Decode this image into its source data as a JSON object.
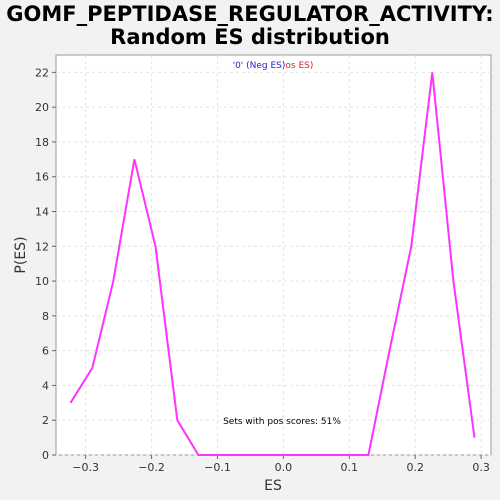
{
  "page": {
    "title_line1": "GOMF_PEPTIDASE_REGULATOR_ACTIVITY:",
    "title_line2": "Random ES distribution"
  },
  "chart_data": {
    "type": "line",
    "xlabel": "ES",
    "ylabel": "P(ES)",
    "xlim": [
      -0.345,
      0.315
    ],
    "ylim": [
      0,
      23
    ],
    "x_ticks": [
      -0.3,
      -0.2,
      -0.1,
      0.0,
      0.1,
      0.2,
      0.3
    ],
    "x_tick_labels": [
      "−0.3",
      "−0.2",
      "−0.1",
      "0.0",
      "0.1",
      "0.2",
      "0.3"
    ],
    "y_ticks": [
      0,
      2,
      4,
      6,
      8,
      10,
      12,
      14,
      16,
      18,
      20,
      22
    ],
    "grid": true,
    "legend": {
      "neg_text": "'0' (Neg ES)",
      "pos_text": "os ES)",
      "neg_color": "#2222cc",
      "pos_color": "#dd2222",
      "placement": "top-center"
    },
    "annotation": "Sets with pos scores: 51%",
    "series": [
      {
        "color": "#ff33ff",
        "x": [
          -0.323,
          -0.29,
          -0.258,
          -0.226,
          -0.194,
          -0.161,
          -0.129,
          -0.097,
          -0.065,
          -0.032,
          0.0,
          0.032,
          0.065,
          0.097,
          0.129,
          0.161,
          0.194,
          0.226,
          0.258,
          0.29
        ],
        "y": [
          3,
          5,
          10,
          17,
          12,
          2,
          0,
          0,
          0,
          0,
          0,
          0,
          0,
          0,
          0,
          6,
          12,
          22,
          10,
          1
        ]
      }
    ]
  }
}
